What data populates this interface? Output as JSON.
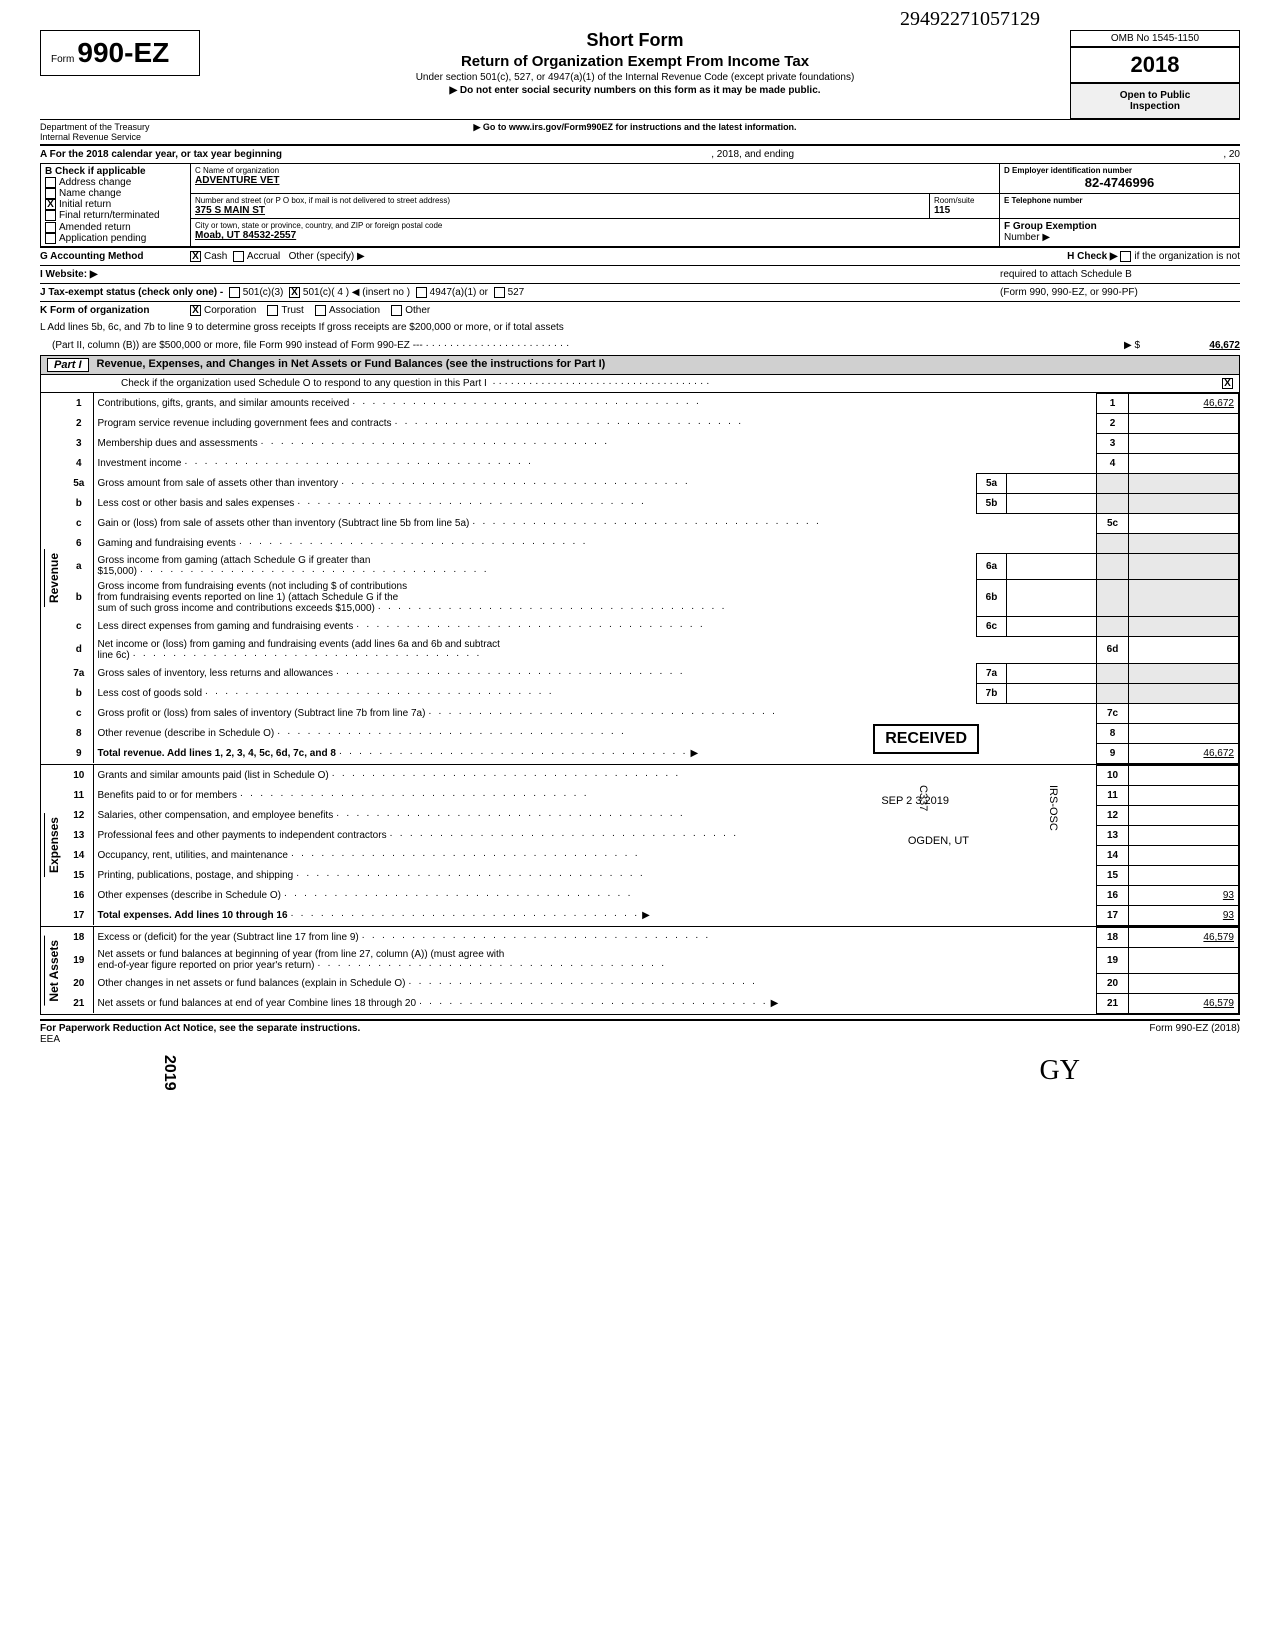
{
  "header": {
    "form_word": "Form",
    "form_number": "990-EZ",
    "title": "Short Form",
    "subtitle": "Return of Organization Exempt From Income Tax",
    "under": "Under section 501(c), 527, or 4947(a)(1) of the Internal Revenue Code (except private foundations)",
    "arrow1": "▶  Do not enter social security numbers on this form as it may be made public.",
    "arrow2": "▶  Go to www.irs.gov/Form990EZ for instructions and the latest information.",
    "dept1": "Department of the Treasury",
    "dept2": "Internal Revenue Service",
    "omb": "OMB No 1545-1150",
    "year": "2018",
    "open1": "Open to Public",
    "open2": "Inspection",
    "handwritten_top": "29492271057129",
    "colors": {
      "header_gray": "#d0d0d0",
      "light_gray": "#e8e8e8"
    }
  },
  "lineA": {
    "label": "A  For the 2018 calendar year, or tax year beginning",
    "mid": ", 2018, and ending",
    "end": ", 20"
  },
  "blockB": {
    "title": "B  Check if applicable",
    "opts": [
      "Address change",
      "Name change",
      "Initial return",
      "Final return/terminated",
      "Amended return",
      "Application pending"
    ],
    "checked_idx": 2
  },
  "blockC": {
    "label": "C  Name of organization",
    "name": "ADVENTURE VET",
    "addr_label": "Number and street (or P O  box, if mail is not delivered to street address)",
    "addr": "375 S MAIN ST",
    "room_label": "Room/suite",
    "room": "115",
    "city_label": "City or town, state or province, country, and ZIP or foreign postal code",
    "city": "Moab, UT 84532-2557"
  },
  "blockD": {
    "label": "D  Employer identification number",
    "value": "82-4746996"
  },
  "blockE": {
    "label": "E  Telephone number",
    "value": ""
  },
  "blockF": {
    "label": "F  Group Exemption",
    "label2": "Number  ▶",
    "value": ""
  },
  "lineG": {
    "label": "G  Accounting Method",
    "opts": [
      "Cash",
      "Accrual"
    ],
    "other": "Other (specify) ▶",
    "checked_idx": 0
  },
  "lineH": {
    "label": "H  Check ▶",
    "text": "if the organization is not",
    "text2": "required to attach Schedule B",
    "text3": "(Form 990, 990-EZ, or 990-PF)"
  },
  "lineI": {
    "label": "I   Website:   ▶"
  },
  "lineJ": {
    "label": "J  Tax-exempt status (check only one) -",
    "opts": [
      "501(c)(3)",
      "501(c)( 4  ) ◀ (insert no )",
      "4947(a)(1) or",
      "527"
    ],
    "checked_idx": 1
  },
  "lineK": {
    "label": "K  Form of organization",
    "opts": [
      "Corporation",
      "Trust",
      "Association",
      "Other"
    ],
    "checked_idx": 0
  },
  "lineL": {
    "text1": "L  Add lines 5b, 6c, and 7b to line 9 to determine gross receipts  If gross receipts are $200,000 or more, or if total assets",
    "text2": "(Part II, column (B)) are $500,000 or more, file Form 990 instead of Form 990-EZ   ---",
    "arrow": "▶ $",
    "value": "46,672"
  },
  "part1": {
    "tag": "Part I",
    "title": "Revenue, Expenses, and Changes in Net Assets or Fund Balances (see the instructions for Part I)",
    "check_line": "Check if the organization used Schedule O to respond to any question in this Part I",
    "check_checked": true
  },
  "sections": {
    "revenue_label": "Revenue",
    "expenses_label": "Expenses",
    "netassets_label": "Net Assets"
  },
  "rows": [
    {
      "n": "1",
      "d": "Contributions, gifts, grants, and similar amounts received",
      "lbl": "1",
      "v": "46,672"
    },
    {
      "n": "2",
      "d": "Program service revenue including government fees and contracts",
      "lbl": "2",
      "v": ""
    },
    {
      "n": "3",
      "d": "Membership dues and assessments",
      "lbl": "3",
      "v": ""
    },
    {
      "n": "4",
      "d": "Investment income",
      "lbl": "4",
      "v": ""
    },
    {
      "n": "5a",
      "d": "Gross amount from sale of assets other than inventory",
      "inner_lbl": "5a",
      "inner_v": "",
      "gray": true
    },
    {
      "n": "b",
      "d": "Less  cost or other basis and sales expenses",
      "inner_lbl": "5b",
      "inner_v": "",
      "gray": true
    },
    {
      "n": "c",
      "d": "Gain or (loss) from sale of assets other than inventory (Subtract line 5b from line 5a)",
      "lbl": "5c",
      "v": ""
    },
    {
      "n": "6",
      "d": "Gaming and fundraising events",
      "gray": true,
      "noval": true
    },
    {
      "n": "a",
      "d": "Gross income from gaming (attach Schedule G if greater than",
      "d2": "$15,000)",
      "inner_lbl": "6a",
      "inner_v": "",
      "gray": true
    },
    {
      "n": "b",
      "d": "Gross income from fundraising events (not including     $                              of contributions",
      "d2": "from fundraising events reported on line 1) (attach Schedule G if the",
      "d3": "sum of such gross income and contributions exceeds $15,000)",
      "inner_lbl": "6b",
      "inner_v": "",
      "gray": true
    },
    {
      "n": "c",
      "d": "Less  direct expenses from gaming and fundraising events",
      "inner_lbl": "6c",
      "inner_v": "",
      "gray": true
    },
    {
      "n": "d",
      "d": "Net income or (loss) from gaming and fundraising events (add lines 6a and 6b and subtract",
      "d2": "line 6c)",
      "lbl": "6d",
      "v": ""
    },
    {
      "n": "7a",
      "d": "Gross sales of inventory, less returns and allowances",
      "inner_lbl": "7a",
      "inner_v": "",
      "gray": true
    },
    {
      "n": "b",
      "d": "Less  cost of goods sold",
      "inner_lbl": "7b",
      "inner_v": "",
      "gray": true
    },
    {
      "n": "c",
      "d": "Gross profit or (loss) from sales of inventory (Subtract line 7b from line 7a)",
      "lbl": "7c",
      "v": ""
    },
    {
      "n": "8",
      "d": "Other revenue (describe in Schedule O)",
      "lbl": "8",
      "v": ""
    },
    {
      "n": "9",
      "d": "Total revenue.  Add lines 1, 2, 3, 4, 5c, 6d, 7c, and 8",
      "lbl": "9",
      "v": "46,672",
      "bold": true,
      "arrow": true
    }
  ],
  "exp_rows": [
    {
      "n": "10",
      "d": "Grants and similar amounts paid (list in Schedule O)",
      "lbl": "10",
      "v": ""
    },
    {
      "n": "11",
      "d": "Benefits paid to or for members",
      "lbl": "11",
      "v": ""
    },
    {
      "n": "12",
      "d": "Salaries, other compensation, and employee benefits",
      "lbl": "12",
      "v": ""
    },
    {
      "n": "13",
      "d": "Professional fees and other payments to independent contractors",
      "lbl": "13",
      "v": ""
    },
    {
      "n": "14",
      "d": "Occupancy, rent, utilities, and maintenance",
      "lbl": "14",
      "v": ""
    },
    {
      "n": "15",
      "d": "Printing, publications, postage, and shipping",
      "lbl": "15",
      "v": ""
    },
    {
      "n": "16",
      "d": "Other expenses (describe in Schedule O)",
      "lbl": "16",
      "v": "93"
    },
    {
      "n": "17",
      "d": "Total expenses.  Add lines 10 through 16",
      "lbl": "17",
      "v": "93",
      "bold": true,
      "arrow": true
    }
  ],
  "na_rows": [
    {
      "n": "18",
      "d": "Excess or (deficit) for the year (Subtract line 17 from line 9)",
      "lbl": "18",
      "v": "46,579"
    },
    {
      "n": "19",
      "d": "Net assets or fund balances at beginning of year (from line 27, column (A)) (must agree with",
      "d2": "end-of-year figure reported on prior year's return)",
      "lbl": "19",
      "v": ""
    },
    {
      "n": "20",
      "d": "Other changes in net assets or fund balances (explain in Schedule O)",
      "lbl": "20",
      "v": ""
    },
    {
      "n": "21",
      "d": "Net assets or fund balances at end of year  Combine lines 18 through 20",
      "lbl": "21",
      "v": "46,579",
      "arrow": true
    }
  ],
  "footer": {
    "left": "For Paperwork Reduction Act Notice, see the separate instructions.",
    "eea": "EEA",
    "right": "Form 990-EZ (2018)"
  },
  "stamps": {
    "received": "RECEIVED",
    "date": "SEP 2 3 2019",
    "ogden": "OGDEN, UT",
    "side1": "C337",
    "side2": "IRS-OSC",
    "year_vert": "2019",
    "initials": "GY"
  }
}
